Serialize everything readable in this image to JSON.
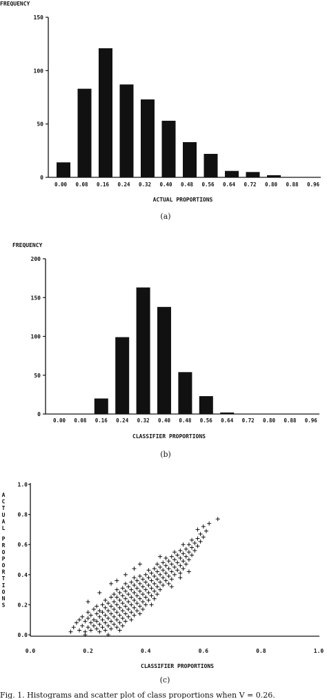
{
  "panels": {
    "a": {
      "label": "(a)"
    },
    "b": {
      "label": "(b)"
    },
    "c": {
      "label": "(c)"
    }
  },
  "caption": "Fig. 1. Histograms and scatter plot of class proportions when V = 0.26.",
  "colors": {
    "ink": "#111111",
    "paper": "#ffffff"
  },
  "chart_data": [
    {
      "id": "a",
      "type": "bar",
      "title": "",
      "ylabel": "FREQUENCY",
      "xlabel": "ACTUAL PROPORTIONS",
      "categories": [
        "0.00",
        "0.08",
        "0.16",
        "0.24",
        "0.32",
        "0.40",
        "0.48",
        "0.56",
        "0.64",
        "0.72",
        "0.80",
        "0.88",
        "0.96"
      ],
      "values": [
        14,
        83,
        121,
        87,
        73,
        53,
        33,
        22,
        6,
        5,
        2,
        0,
        0
      ],
      "ylim": [
        0,
        150
      ],
      "yticks": [
        0,
        50,
        100,
        150
      ],
      "yticklabels": [
        "0",
        "50",
        "100",
        "150"
      ],
      "grid": false
    },
    {
      "id": "b",
      "type": "bar",
      "title": "",
      "ylabel": "FREQUENCY",
      "xlabel": "CLASSIFIER PROPORTIONS",
      "categories": [
        "0.00",
        "0.08",
        "0.16",
        "0.24",
        "0.32",
        "0.40",
        "0.48",
        "0.56",
        "0.64",
        "0.72",
        "0.80",
        "0.88",
        "0.96"
      ],
      "values": [
        0,
        0,
        20,
        99,
        163,
        138,
        54,
        23,
        2,
        0,
        0,
        0,
        0
      ],
      "ylim": [
        0,
        200
      ],
      "yticks": [
        0,
        50,
        100,
        150,
        200
      ],
      "yticklabels": [
        "0",
        "50",
        "100",
        "150",
        "200"
      ],
      "grid": false
    },
    {
      "id": "c",
      "type": "scatter",
      "title": "",
      "xlabel": "CLASSIFIER PROPORTIONS",
      "ylabel": "ACTUAL PROPORTIONS",
      "xlim": [
        0,
        1
      ],
      "ylim": [
        0,
        1
      ],
      "xticks": [
        0,
        0.2,
        0.4,
        0.6,
        0.8,
        1.0
      ],
      "xticklabels": [
        "0.0",
        "0.2",
        "0.4",
        "0.6",
        "0.8",
        "1.0"
      ],
      "yticks": [
        0,
        0.2,
        0.4,
        0.6,
        0.8,
        1.0
      ],
      "yticklabels": [
        "0.0",
        "0.2",
        "0.4",
        "0.6",
        "0.8",
        "1.0"
      ],
      "marker": "+",
      "grid": false,
      "points": [
        [
          0.14,
          0.02
        ],
        [
          0.15,
          0.05
        ],
        [
          0.16,
          0.08
        ],
        [
          0.17,
          0.03
        ],
        [
          0.17,
          0.1
        ],
        [
          0.18,
          0.06
        ],
        [
          0.18,
          0.12
        ],
        [
          0.19,
          0.02
        ],
        [
          0.19,
          0.09
        ],
        [
          0.2,
          0.05
        ],
        [
          0.2,
          0.11
        ],
        [
          0.2,
          0.15
        ],
        [
          0.21,
          0.03
        ],
        [
          0.21,
          0.08
        ],
        [
          0.21,
          0.13
        ],
        [
          0.22,
          0.06
        ],
        [
          0.22,
          0.1
        ],
        [
          0.22,
          0.17
        ],
        [
          0.23,
          0.04
        ],
        [
          0.23,
          0.09
        ],
        [
          0.23,
          0.14
        ],
        [
          0.23,
          0.19
        ],
        [
          0.24,
          0.02
        ],
        [
          0.24,
          0.07
        ],
        [
          0.24,
          0.12
        ],
        [
          0.24,
          0.16
        ],
        [
          0.25,
          0.05
        ],
        [
          0.25,
          0.1
        ],
        [
          0.25,
          0.15
        ],
        [
          0.25,
          0.2
        ],
        [
          0.26,
          0.03
        ],
        [
          0.26,
          0.08
        ],
        [
          0.26,
          0.13
        ],
        [
          0.26,
          0.18
        ],
        [
          0.26,
          0.23
        ],
        [
          0.27,
          0.06
        ],
        [
          0.27,
          0.11
        ],
        [
          0.27,
          0.16
        ],
        [
          0.27,
          0.21
        ],
        [
          0.28,
          0.04
        ],
        [
          0.28,
          0.09
        ],
        [
          0.28,
          0.14
        ],
        [
          0.28,
          0.19
        ],
        [
          0.28,
          0.25
        ],
        [
          0.29,
          0.07
        ],
        [
          0.29,
          0.12
        ],
        [
          0.29,
          0.17
        ],
        [
          0.29,
          0.22
        ],
        [
          0.29,
          0.27
        ],
        [
          0.3,
          0.05
        ],
        [
          0.3,
          0.1
        ],
        [
          0.3,
          0.15
        ],
        [
          0.3,
          0.2
        ],
        [
          0.3,
          0.25
        ],
        [
          0.3,
          0.3
        ],
        [
          0.31,
          0.08
        ],
        [
          0.31,
          0.13
        ],
        [
          0.31,
          0.18
        ],
        [
          0.31,
          0.23
        ],
        [
          0.31,
          0.28
        ],
        [
          0.32,
          0.06
        ],
        [
          0.32,
          0.11
        ],
        [
          0.32,
          0.16
        ],
        [
          0.32,
          0.21
        ],
        [
          0.32,
          0.26
        ],
        [
          0.32,
          0.31
        ],
        [
          0.33,
          0.09
        ],
        [
          0.33,
          0.14
        ],
        [
          0.33,
          0.19
        ],
        [
          0.33,
          0.24
        ],
        [
          0.33,
          0.29
        ],
        [
          0.33,
          0.34
        ],
        [
          0.34,
          0.12
        ],
        [
          0.34,
          0.17
        ],
        [
          0.34,
          0.22
        ],
        [
          0.34,
          0.27
        ],
        [
          0.34,
          0.32
        ],
        [
          0.35,
          0.1
        ],
        [
          0.35,
          0.15
        ],
        [
          0.35,
          0.2
        ],
        [
          0.35,
          0.25
        ],
        [
          0.35,
          0.3
        ],
        [
          0.35,
          0.35
        ],
        [
          0.36,
          0.13
        ],
        [
          0.36,
          0.18
        ],
        [
          0.36,
          0.23
        ],
        [
          0.36,
          0.28
        ],
        [
          0.36,
          0.33
        ],
        [
          0.36,
          0.38
        ],
        [
          0.37,
          0.16
        ],
        [
          0.37,
          0.21
        ],
        [
          0.37,
          0.26
        ],
        [
          0.37,
          0.31
        ],
        [
          0.37,
          0.36
        ],
        [
          0.38,
          0.14
        ],
        [
          0.38,
          0.19
        ],
        [
          0.38,
          0.24
        ],
        [
          0.38,
          0.29
        ],
        [
          0.38,
          0.34
        ],
        [
          0.38,
          0.39
        ],
        [
          0.39,
          0.17
        ],
        [
          0.39,
          0.22
        ],
        [
          0.39,
          0.27
        ],
        [
          0.39,
          0.32
        ],
        [
          0.39,
          0.37
        ],
        [
          0.4,
          0.2
        ],
        [
          0.4,
          0.25
        ],
        [
          0.4,
          0.3
        ],
        [
          0.4,
          0.35
        ],
        [
          0.4,
          0.4
        ],
        [
          0.41,
          0.23
        ],
        [
          0.41,
          0.28
        ],
        [
          0.41,
          0.33
        ],
        [
          0.41,
          0.38
        ],
        [
          0.41,
          0.43
        ],
        [
          0.42,
          0.26
        ],
        [
          0.42,
          0.31
        ],
        [
          0.42,
          0.36
        ],
        [
          0.42,
          0.41
        ],
        [
          0.43,
          0.24
        ],
        [
          0.43,
          0.29
        ],
        [
          0.43,
          0.34
        ],
        [
          0.43,
          0.39
        ],
        [
          0.43,
          0.44
        ],
        [
          0.44,
          0.27
        ],
        [
          0.44,
          0.32
        ],
        [
          0.44,
          0.37
        ],
        [
          0.44,
          0.42
        ],
        [
          0.44,
          0.47
        ],
        [
          0.45,
          0.3
        ],
        [
          0.45,
          0.35
        ],
        [
          0.45,
          0.4
        ],
        [
          0.45,
          0.45
        ],
        [
          0.46,
          0.33
        ],
        [
          0.46,
          0.38
        ],
        [
          0.46,
          0.43
        ],
        [
          0.46,
          0.48
        ],
        [
          0.47,
          0.36
        ],
        [
          0.47,
          0.41
        ],
        [
          0.47,
          0.46
        ],
        [
          0.47,
          0.51
        ],
        [
          0.48,
          0.34
        ],
        [
          0.48,
          0.39
        ],
        [
          0.48,
          0.44
        ],
        [
          0.48,
          0.49
        ],
        [
          0.49,
          0.37
        ],
        [
          0.49,
          0.42
        ],
        [
          0.49,
          0.47
        ],
        [
          0.49,
          0.52
        ],
        [
          0.5,
          0.4
        ],
        [
          0.5,
          0.45
        ],
        [
          0.5,
          0.5
        ],
        [
          0.5,
          0.55
        ],
        [
          0.51,
          0.43
        ],
        [
          0.51,
          0.48
        ],
        [
          0.51,
          0.53
        ],
        [
          0.52,
          0.41
        ],
        [
          0.52,
          0.46
        ],
        [
          0.52,
          0.51
        ],
        [
          0.52,
          0.56
        ],
        [
          0.53,
          0.44
        ],
        [
          0.53,
          0.49
        ],
        [
          0.53,
          0.54
        ],
        [
          0.54,
          0.47
        ],
        [
          0.54,
          0.52
        ],
        [
          0.54,
          0.57
        ],
        [
          0.55,
          0.5
        ],
        [
          0.55,
          0.55
        ],
        [
          0.55,
          0.6
        ],
        [
          0.56,
          0.53
        ],
        [
          0.56,
          0.58
        ],
        [
          0.56,
          0.63
        ],
        [
          0.57,
          0.56
        ],
        [
          0.57,
          0.61
        ],
        [
          0.58,
          0.59
        ],
        [
          0.58,
          0.64
        ],
        [
          0.58,
          0.7
        ],
        [
          0.59,
          0.62
        ],
        [
          0.59,
          0.67
        ],
        [
          0.6,
          0.65
        ],
        [
          0.6,
          0.72
        ],
        [
          0.61,
          0.69
        ],
        [
          0.62,
          0.74
        ],
        [
          0.65,
          0.77
        ],
        [
          0.49,
          0.32
        ],
        [
          0.52,
          0.38
        ],
        [
          0.55,
          0.42
        ],
        [
          0.28,
          0.34
        ],
        [
          0.33,
          0.4
        ],
        [
          0.24,
          0.28
        ],
        [
          0.38,
          0.47
        ],
        [
          0.2,
          0.22
        ],
        [
          0.42,
          0.2
        ],
        [
          0.31,
          0.03
        ],
        [
          0.27,
          0.0
        ],
        [
          0.19,
          0.0
        ],
        [
          0.45,
          0.52
        ],
        [
          0.36,
          0.44
        ],
        [
          0.53,
          0.6
        ],
        [
          0.3,
          0.36
        ]
      ]
    }
  ]
}
